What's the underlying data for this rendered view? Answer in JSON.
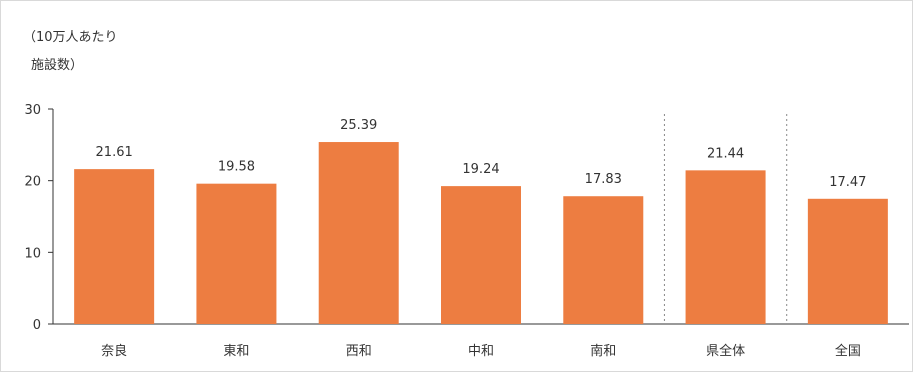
{
  "chart_data": {
    "type": "bar",
    "ylabel_lines": [
      "（10万人あたり",
      "施設数）"
    ],
    "categories": [
      "奈良",
      "東和",
      "西和",
      "中和",
      "南和",
      "県全体",
      "全国"
    ],
    "values": [
      21.61,
      19.58,
      25.39,
      19.24,
      17.83,
      21.44,
      17.47
    ],
    "data_labels": [
      "21.61",
      "19.58",
      "25.39",
      "19.24",
      "17.83",
      "21.44",
      "17.47"
    ],
    "yticks": [
      "0",
      "10",
      "20",
      "30"
    ],
    "ylim": [
      0,
      30
    ],
    "grid": false,
    "legend": "none",
    "separators_before_categories": [
      5,
      6
    ],
    "bar_color": "#ED7D41",
    "axis_color": "#333333",
    "separator_color": "#888888"
  }
}
